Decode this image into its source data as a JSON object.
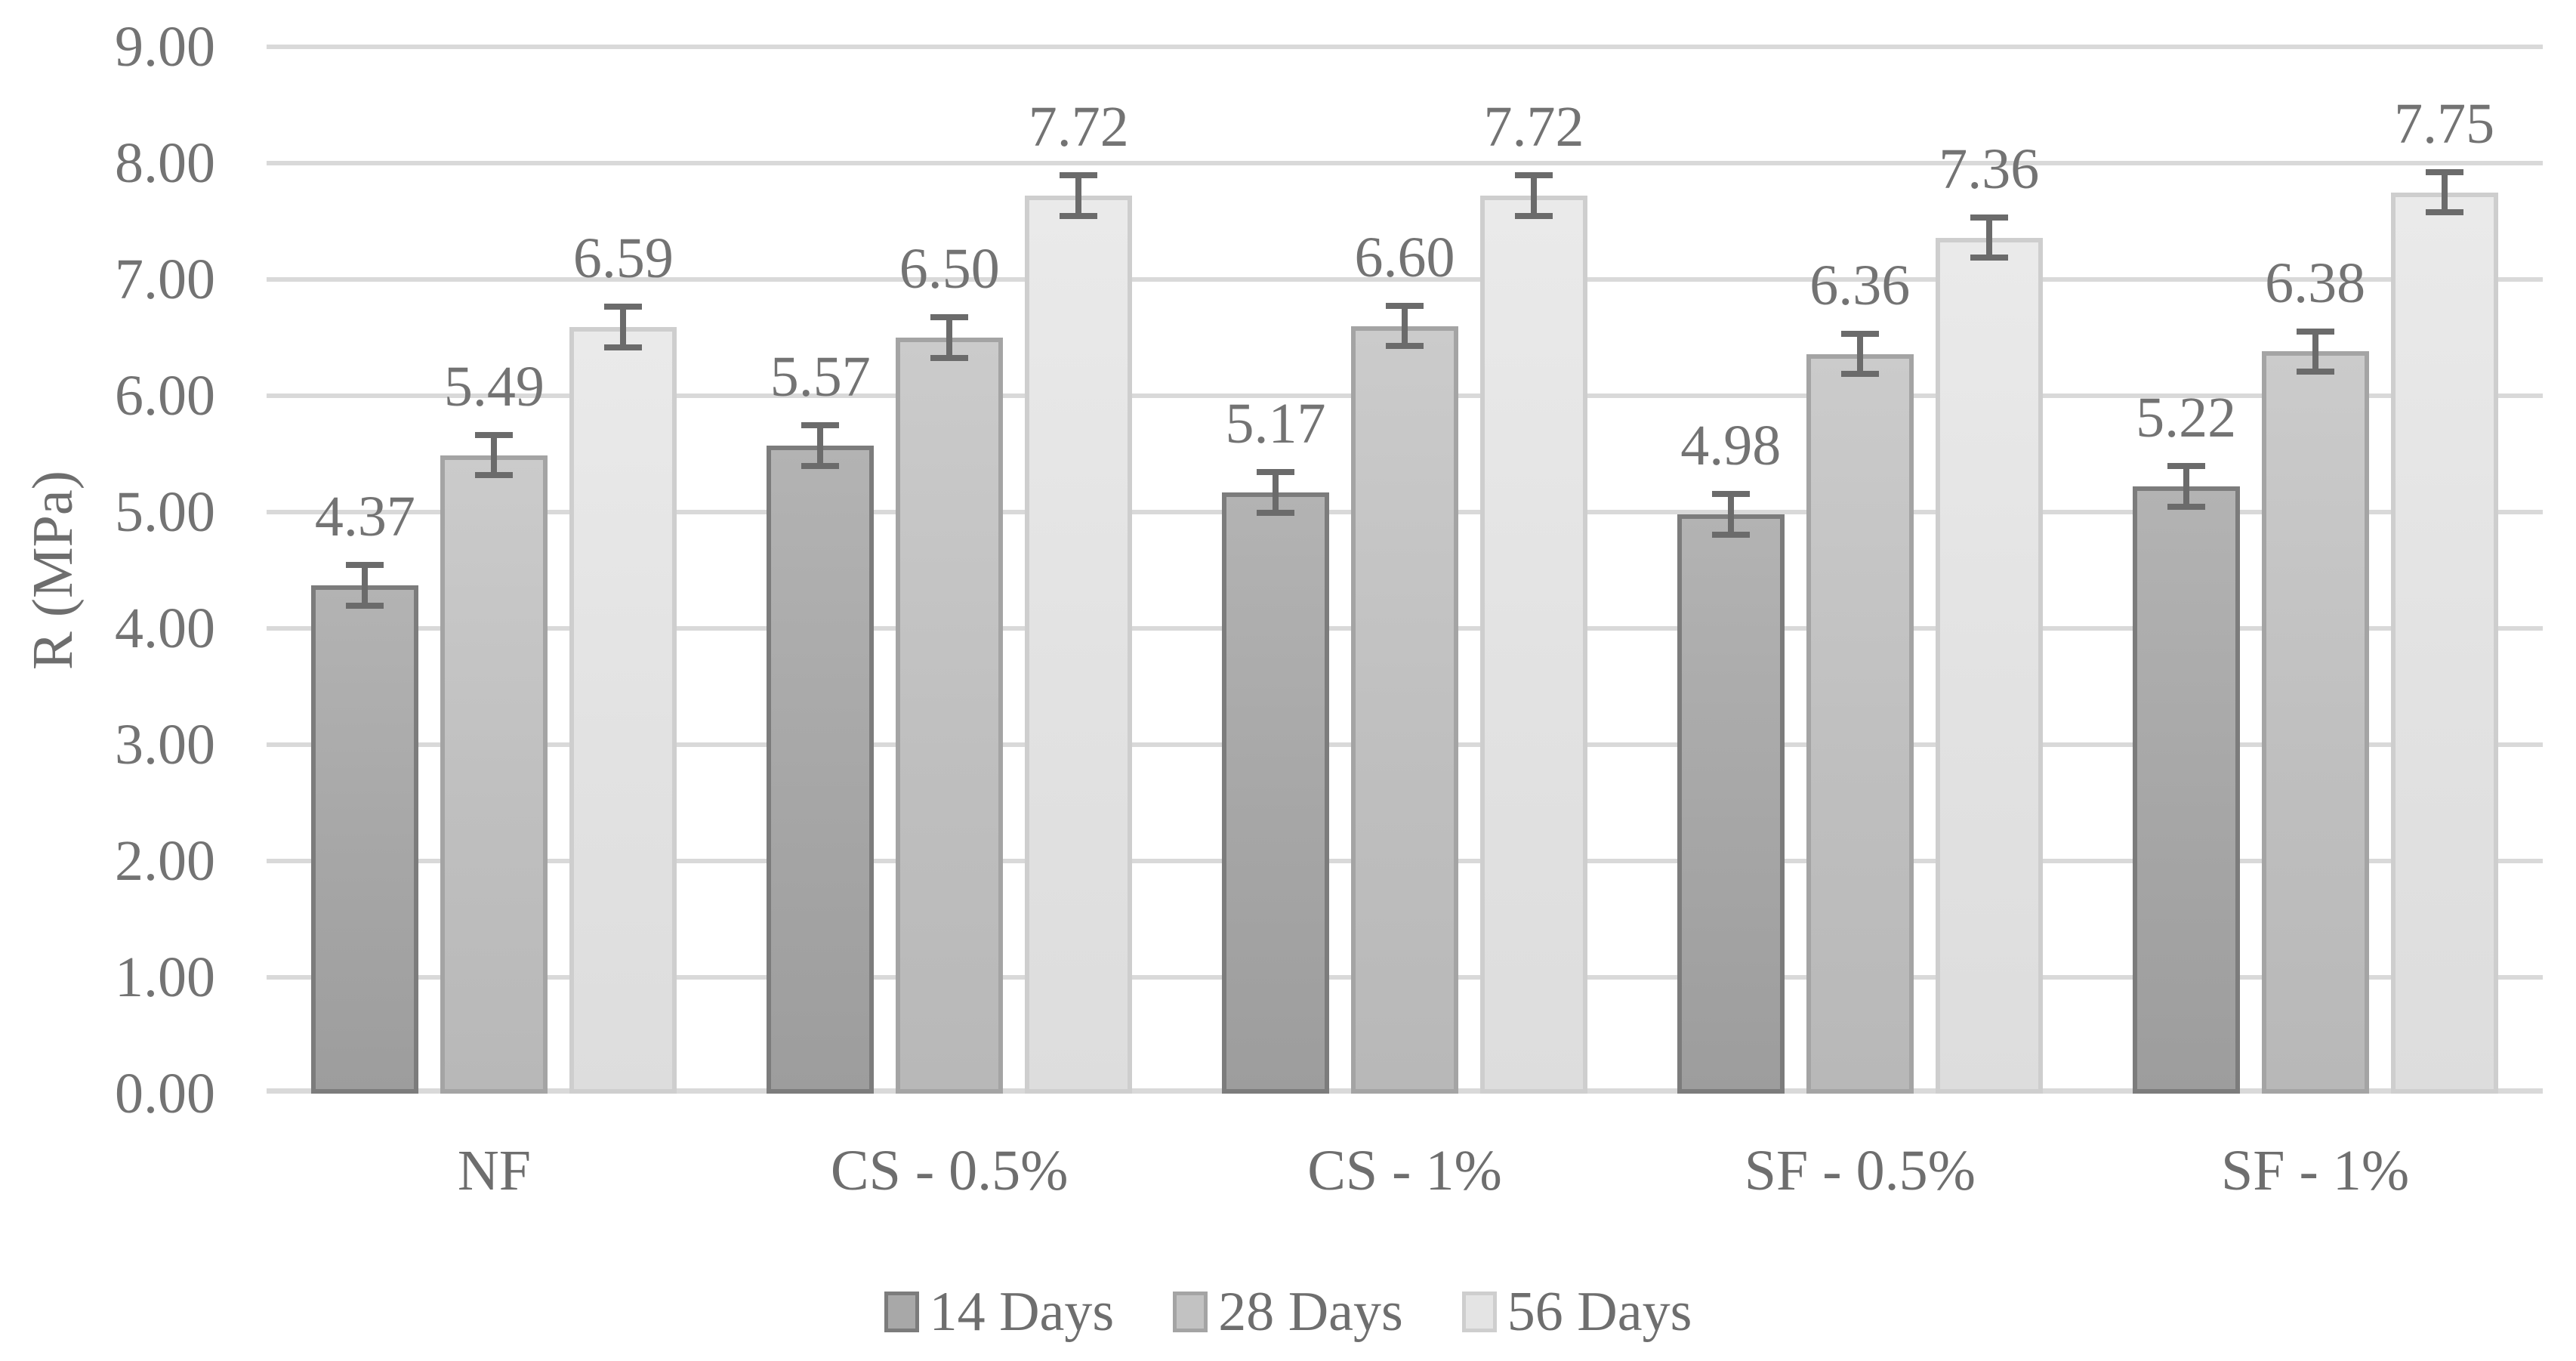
{
  "chart_data": {
    "type": "bar",
    "title": "",
    "xlabel": "",
    "ylabel": "R (MPa)",
    "ylim": [
      0,
      9
    ],
    "ytick_step": 1,
    "yticks": [
      "0.00",
      "1.00",
      "2.00",
      "3.00",
      "4.00",
      "5.00",
      "6.00",
      "7.00",
      "8.00",
      "9.00"
    ],
    "grid": "horizontal",
    "legend_position": "bottom",
    "data_labels": true,
    "label_decimals": 2,
    "categories": [
      "NF",
      "CS - 0.5%",
      "CS - 1%",
      "SF - 0.5%",
      "SF - 1%"
    ],
    "series": [
      {
        "name": "14 Days",
        "values": [
          4.37,
          5.57,
          5.17,
          4.98,
          5.22
        ],
        "fill": "#a8a8a8",
        "border": "#7c7c7c"
      },
      {
        "name": "28 Days",
        "values": [
          5.49,
          6.5,
          6.6,
          6.36,
          6.38
        ],
        "fill": "#c2c2c2",
        "border": "#a4a4a4"
      },
      {
        "name": "56 Days",
        "values": [
          6.59,
          7.72,
          7.72,
          7.36,
          7.75
        ],
        "fill": "#e4e4e4",
        "border": "#cecece"
      }
    ],
    "error_bar_estimate": 0.2,
    "colors": {
      "grid": "#d9d9d9",
      "text": "#737373",
      "error_bar": "#6b6b6b",
      "background": "#ffffff"
    }
  }
}
